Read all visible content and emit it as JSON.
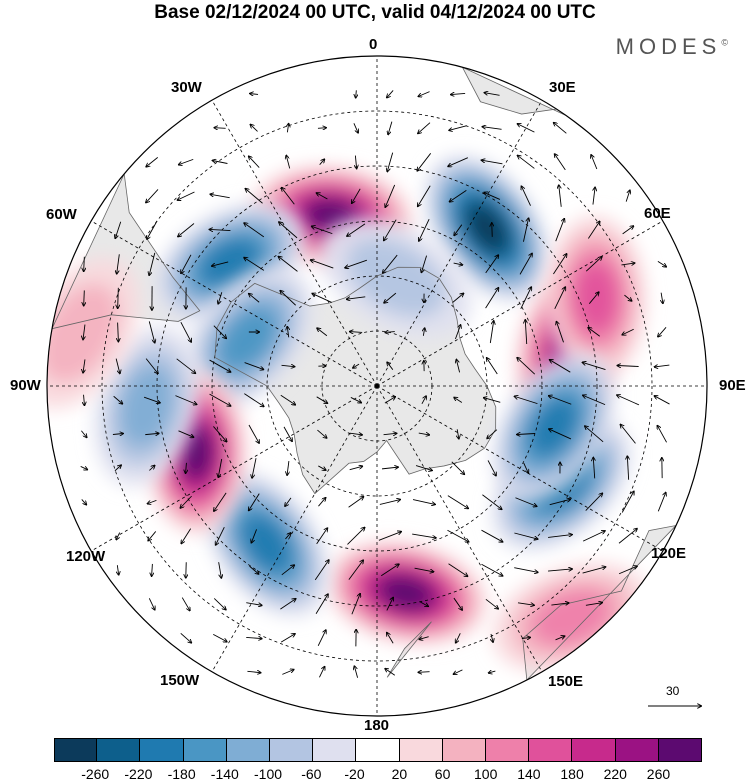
{
  "title": "Base 02/12/2024 00 UTC, valid 04/12/2024 00 UTC",
  "logo": "MODES",
  "logo_mark": "©",
  "longitude_labels": [
    "0",
    "30E",
    "60E",
    "90E",
    "120E",
    "150E",
    "180",
    "150W",
    "120W",
    "90W",
    "60W",
    "30W"
  ],
  "reference_vector": {
    "value": "30"
  },
  "colorbar": {
    "ticks": [
      "-260",
      "-220",
      "-180",
      "-140",
      "-100",
      "-60",
      "-20",
      "20",
      "60",
      "100",
      "140",
      "180",
      "220",
      "260"
    ],
    "colors": [
      "#0c3a5b",
      "#0d5f8c",
      "#1f7ab0",
      "#4a96c4",
      "#7fadd4",
      "#b3c5e2",
      "#dfe0ef",
      "#ffffff",
      "#f9d9dd",
      "#f4b2c0",
      "#ee80aa",
      "#e0519b",
      "#c72a8c",
      "#9b1283",
      "#5c0a70"
    ]
  },
  "anomaly_features": [
    {
      "sign": "positive",
      "strength": 260,
      "position_lon": 345,
      "position_lat": -58
    },
    {
      "sign": "negative",
      "strength": -200,
      "position_lon": 310,
      "position_lat": -55
    },
    {
      "sign": "negative",
      "strength": -140,
      "position_lon": 290,
      "position_lat": -65
    },
    {
      "sign": "negative",
      "strength": -260,
      "position_lon": 35,
      "position_lat": -55
    },
    {
      "sign": "positive",
      "strength": 220,
      "position_lon": 80,
      "position_lat": -55
    },
    {
      "sign": "positive",
      "strength": 140,
      "position_lon": 68,
      "position_lat": -47
    },
    {
      "sign": "negative",
      "strength": -200,
      "position_lon": 118,
      "position_lat": -52
    },
    {
      "sign": "negative",
      "strength": -180,
      "position_lon": 103,
      "position_lat": -57
    },
    {
      "sign": "positive",
      "strength": 260,
      "position_lon": 172,
      "position_lat": -52
    },
    {
      "sign": "negative",
      "strength": -180,
      "position_lon": 215,
      "position_lat": -55
    },
    {
      "sign": "positive",
      "strength": 260,
      "position_lon": 250,
      "position_lat": -55
    },
    {
      "sign": "negative",
      "strength": -100,
      "position_lon": 265,
      "position_lat": -48
    },
    {
      "sign": "positive",
      "strength": 100,
      "position_lon": 140,
      "position_lat": -35
    },
    {
      "sign": "positive",
      "strength": 60,
      "position_lon": 280,
      "position_lat": -35
    },
    {
      "sign": "negative",
      "strength": -60,
      "position_lon": 10,
      "position_lat": -70
    }
  ]
}
